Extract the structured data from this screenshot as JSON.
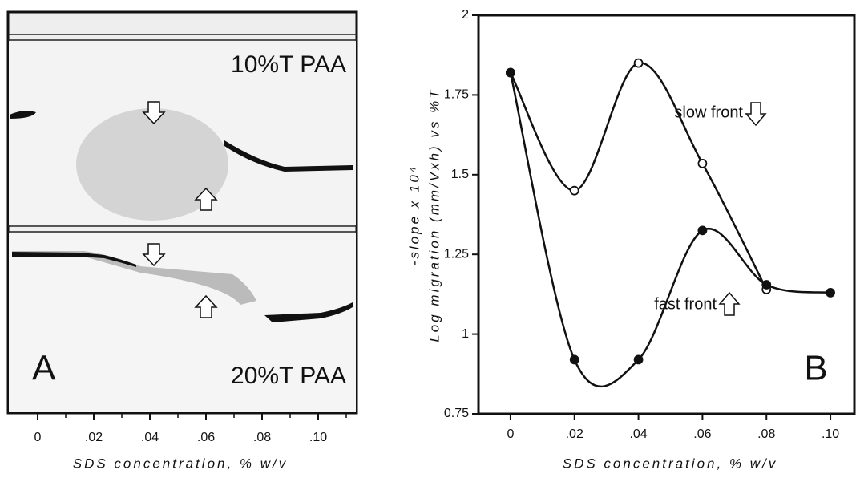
{
  "panel_a": {
    "label": "A",
    "top_gel": "10%T PAA",
    "bottom_gel": "20%T PAA",
    "xtick_labels": [
      "0",
      ".02",
      ".04",
      ".06",
      ".08",
      ".10"
    ],
    "xlabel": "SDS concentration, % w/v"
  },
  "chart_data": {
    "type": "line",
    "panel_label": "B",
    "ylabel_top": "-slope x 10⁴",
    "ylabel": "Log migration (mm/Vxh) vs %T",
    "xlabel": "SDS concentration, % w/v",
    "xlim": [
      -0.01,
      0.1075
    ],
    "ylim": [
      0.75,
      2
    ],
    "xticks": [
      0,
      {
        "value": 0.02,
        "label": ".02"
      },
      {
        "value": 0.04,
        "label": ".04"
      },
      {
        "value": 0.06,
        "label": ".06"
      },
      {
        "value": 0.08,
        "label": ".08"
      },
      {
        "value": 0.1,
        "label": ".10"
      }
    ],
    "yticks": [
      0.75,
      1,
      1.25,
      1.5,
      1.75,
      2
    ],
    "series": [
      {
        "name": "slow front",
        "color": "#111111",
        "marker": "open",
        "x": [
          0,
          0.02,
          0.04,
          0.06,
          0.08
        ],
        "values": [
          1.82,
          1.45,
          1.85,
          1.535,
          1.14
        ]
      },
      {
        "name": "fast front",
        "color": "#111111",
        "marker": "filled",
        "x": [
          0,
          0.02,
          0.04,
          0.06,
          0.08,
          0.1
        ],
        "values": [
          1.82,
          0.92,
          0.92,
          1.325,
          1.155,
          1.13
        ]
      }
    ]
  }
}
